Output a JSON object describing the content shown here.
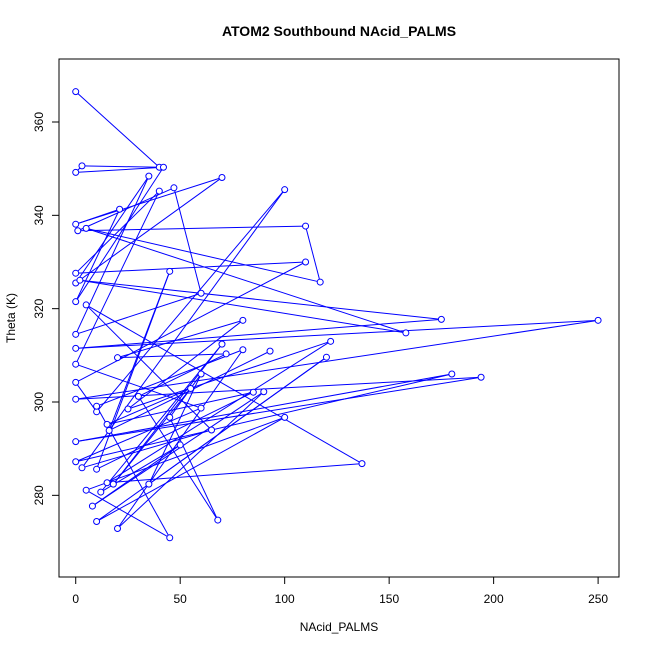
{
  "chart_data": {
    "type": "line",
    "title": "ATOM2 Southbound NAcid_PALMS",
    "xlabel": "NAcid_PALMS",
    "ylabel": "Theta (K)",
    "xlim": [
      -8,
      260
    ],
    "ylim": [
      262.5,
      373.5
    ],
    "xticks": [
      0,
      50,
      100,
      150,
      200,
      250
    ],
    "yticks": [
      280,
      300,
      320,
      340,
      360
    ],
    "grid": false,
    "legend": "none",
    "series_color": "#0000ff",
    "marker": "open-circle",
    "series": [
      {
        "x": [
          0,
          40,
          3,
          0,
          42,
          0,
          21,
          0,
          70,
          0,
          35,
          0,
          60,
          47,
          1,
          110,
          117,
          5,
          158,
          2,
          175,
          0,
          250,
          0,
          194,
          0,
          180,
          0,
          60,
          0,
          40,
          0,
          110,
          0,
          10,
          100,
          3,
          65,
          5,
          137,
          15,
          122,
          25,
          80,
          20,
          72,
          30,
          68,
          45,
          60,
          35,
          120,
          10,
          100,
          5,
          45,
          10,
          80,
          20,
          90,
          8,
          50,
          12,
          70,
          18,
          55,
          15,
          85,
          10,
          45,
          16,
          93
        ],
        "y": [
          366.5,
          350.3,
          350.6,
          349.2,
          350.3,
          321.5,
          341.3,
          338.1,
          348.1,
          325.5,
          348.4,
          314.5,
          323.3,
          345.9,
          336.7,
          337.7,
          325.7,
          337.2,
          314.8,
          326.1,
          317.7,
          311.5,
          317.5,
          300.6,
          305.3,
          291.5,
          306.0,
          287.2,
          298.7,
          308.1,
          345.2,
          327.6,
          330.0,
          304.2,
          297.9,
          345.5,
          285.9,
          294.0,
          320.8,
          286.8,
          282.7,
          313.0,
          298.5,
          317.5,
          309.5,
          310.3,
          301.2,
          274.7,
          296.7,
          306.0,
          282.4,
          309.6,
          274.4,
          296.7,
          281.1,
          270.9,
          299.1,
          311.2,
          272.9,
          302.2,
          277.7,
          290.8,
          280.7,
          312.4,
          282.4,
          302.9,
          295.2,
          302.1,
          285.6,
          328.0,
          293.9,
          310.9
        ]
      }
    ]
  }
}
